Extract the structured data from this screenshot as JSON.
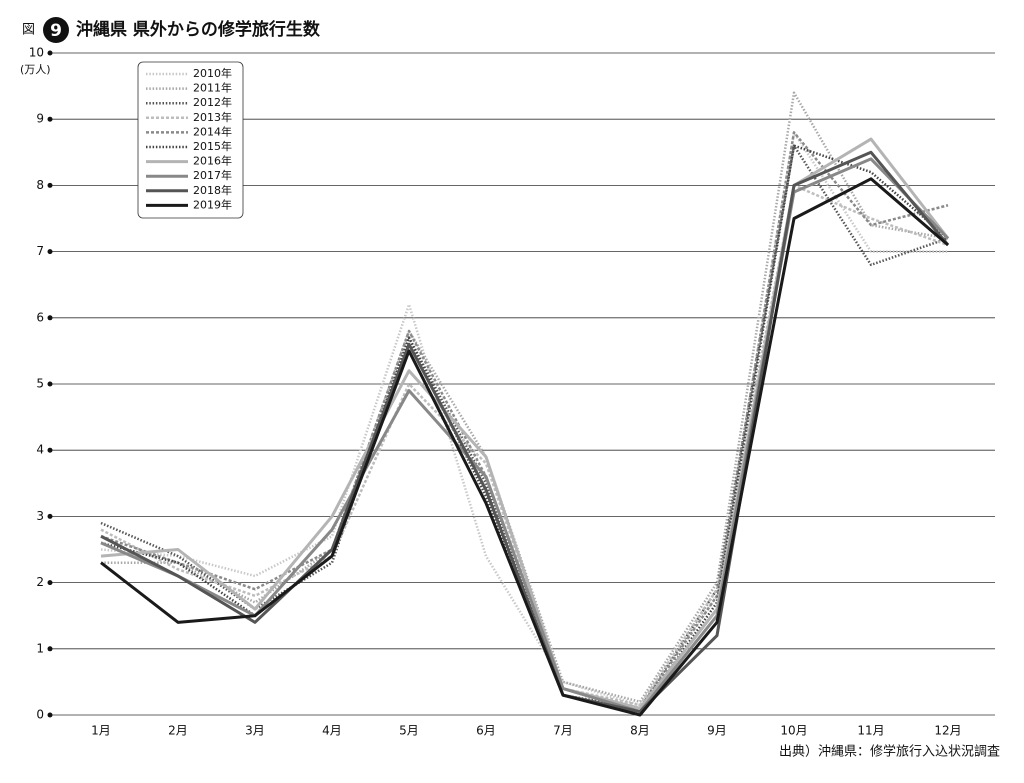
{
  "chart_data": {
    "type": "line",
    "figure_label": "図",
    "figure_number": "9",
    "title": "沖縄県 県外からの修学旅行生数",
    "y_label": "(万人)",
    "source": "出典）沖縄県：修学旅行入込状況調査",
    "categories": [
      "1月",
      "2月",
      "3月",
      "4月",
      "5月",
      "6月",
      "7月",
      "8月",
      "9月",
      "10月",
      "11月",
      "12月"
    ],
    "ylim": [
      0,
      10
    ],
    "yticks": [
      0,
      1,
      2,
      3,
      4,
      5,
      6,
      7,
      8,
      9,
      10
    ],
    "grid": true,
    "legend": "top-left",
    "series": [
      {
        "name": "2010年",
        "color": "#c8c8c8",
        "style": "dotted",
        "values": [
          2.5,
          2.4,
          2.1,
          2.7,
          6.2,
          2.4,
          0.5,
          0.15,
          1.8,
          8.8,
          7.0,
          7.0
        ]
      },
      {
        "name": "2011年",
        "color": "#a8a8a8",
        "style": "dotted",
        "values": [
          2.3,
          2.3,
          1.7,
          2.5,
          5.8,
          3.9,
          0.5,
          0.2,
          2.0,
          9.4,
          7.4,
          7.2
        ]
      },
      {
        "name": "2012年",
        "color": "#555555",
        "style": "dotted",
        "values": [
          2.9,
          2.4,
          1.6,
          2.3,
          5.7,
          3.5,
          0.3,
          0.1,
          1.9,
          8.6,
          6.8,
          7.2
        ]
      },
      {
        "name": "2013年",
        "color": "#bdbdbd",
        "style": "dashed",
        "values": [
          2.8,
          2.2,
          1.8,
          2.4,
          5.0,
          3.8,
          0.4,
          0.15,
          1.9,
          8.0,
          7.5,
          7.1
        ]
      },
      {
        "name": "2014年",
        "color": "#8a8a8a",
        "style": "dashed",
        "values": [
          2.7,
          2.3,
          1.9,
          2.5,
          5.8,
          3.6,
          0.4,
          0.1,
          1.8,
          8.8,
          7.4,
          7.7
        ]
      },
      {
        "name": "2015年",
        "color": "#444444",
        "style": "dotted",
        "values": [
          2.6,
          2.3,
          1.5,
          2.4,
          5.7,
          3.3,
          0.3,
          0.05,
          1.7,
          8.6,
          8.2,
          7.2
        ]
      },
      {
        "name": "2016年",
        "color": "#b4b4b4",
        "style": "solid",
        "values": [
          2.4,
          2.5,
          1.6,
          3.0,
          5.2,
          3.9,
          0.4,
          0.1,
          1.6,
          8.0,
          8.7,
          7.2
        ]
      },
      {
        "name": "2017年",
        "color": "#888888",
        "style": "solid",
        "values": [
          2.6,
          2.1,
          1.5,
          2.8,
          4.9,
          3.6,
          0.4,
          0.05,
          1.5,
          7.9,
          8.4,
          7.2
        ]
      },
      {
        "name": "2018年",
        "color": "#555555",
        "style": "solid",
        "values": [
          2.7,
          2.1,
          1.4,
          2.5,
          5.6,
          3.4,
          0.3,
          0.05,
          1.2,
          8.0,
          8.5,
          7.1
        ]
      },
      {
        "name": "2019年",
        "color": "#1a1a1a",
        "style": "solid",
        "values": [
          2.3,
          1.4,
          1.5,
          2.4,
          5.5,
          3.2,
          0.3,
          0.0,
          1.4,
          7.5,
          8.1,
          7.1
        ]
      }
    ]
  }
}
